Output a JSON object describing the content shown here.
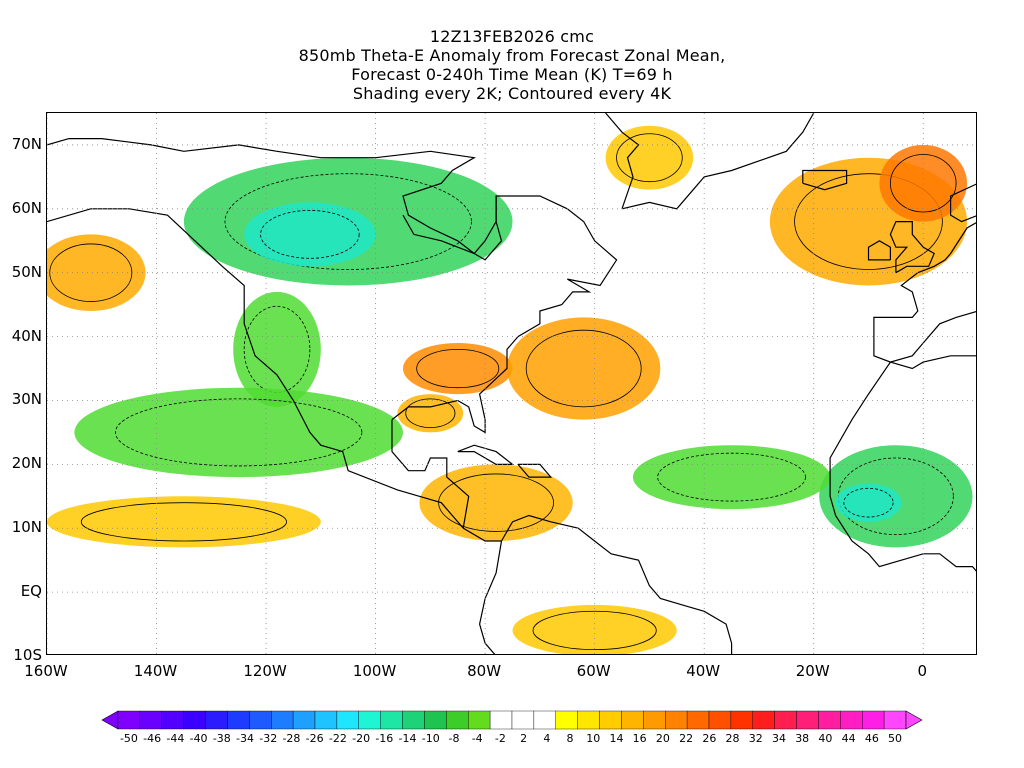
{
  "title_lines": [
    "12Z13FEB2026 cmc",
    "850mb Theta-E Anomaly from Forecast Zonal Mean,",
    "Forecast 0-240h Time Mean (K) T=69 h",
    "Shading every 2K; Contoured every 4K"
  ],
  "map": {
    "lon_range": [
      -160,
      10
    ],
    "lat_range": [
      -10,
      75
    ],
    "y_ticks": [
      {
        "lat": 70,
        "label": "70N"
      },
      {
        "lat": 60,
        "label": "60N"
      },
      {
        "lat": 50,
        "label": "50N"
      },
      {
        "lat": 40,
        "label": "40N"
      },
      {
        "lat": 30,
        "label": "30N"
      },
      {
        "lat": 20,
        "label": "20N"
      },
      {
        "lat": 10,
        "label": "10N"
      },
      {
        "lat": 0,
        "label": "EQ"
      },
      {
        "lat": -10,
        "label": "10S"
      }
    ],
    "x_ticks": [
      {
        "lon": -160,
        "label": "160W"
      },
      {
        "lon": -140,
        "label": "140W"
      },
      {
        "lon": -120,
        "label": "120W"
      },
      {
        "lon": -100,
        "label": "100W"
      },
      {
        "lon": -80,
        "label": "80W"
      },
      {
        "lon": -60,
        "label": "60W"
      },
      {
        "lon": -40,
        "label": "40W"
      },
      {
        "lon": -20,
        "label": "20W"
      },
      {
        "lon": 0,
        "label": "0"
      }
    ],
    "grid": "dotted"
  },
  "colorbar": {
    "colors": [
      "#7f00ff",
      "#6a00ff",
      "#5200ff",
      "#3c00ff",
      "#2a1cff",
      "#1e3cff",
      "#1e5aff",
      "#1e7cff",
      "#1ea0ff",
      "#1ec3ff",
      "#1ee6ff",
      "#1ef5d2",
      "#1ee6a5",
      "#1ed278",
      "#1ec350",
      "#3ccd28",
      "#64dc1e",
      "#ffffff",
      "#ffffff",
      "#ffffff",
      "#ffff00",
      "#ffe600",
      "#ffcd00",
      "#ffb400",
      "#ff9b00",
      "#ff8200",
      "#ff6900",
      "#ff5000",
      "#ff3200",
      "#ff1e1e",
      "#ff1e50",
      "#ff1e78",
      "#ff1ea0",
      "#ff1ec3",
      "#ff1ee6",
      "#ff46ff"
    ],
    "labels": [
      "-50",
      "-46",
      "-44",
      "-40",
      "-38",
      "-34",
      "-32",
      "-28",
      "-26",
      "-22",
      "-20",
      "-16",
      "-14",
      "-10",
      "-8",
      "-4",
      "-2",
      "2",
      "4",
      "8",
      "10",
      "14",
      "16",
      "20",
      "22",
      "26",
      "28",
      "32",
      "34",
      "38",
      "40",
      "44",
      "46",
      "50"
    ]
  },
  "anomaly_regions": [
    {
      "name": "canada-cold",
      "color": "#32d25a",
      "lon": -105,
      "lat": 58,
      "rx": 30,
      "ry": 10
    },
    {
      "name": "canada-core",
      "color": "#1ee6c8",
      "lon": -112,
      "lat": 56,
      "rx": 12,
      "ry": 5
    },
    {
      "name": "western-us",
      "color": "#50dc32",
      "lon": -118,
      "lat": 38,
      "rx": 8,
      "ry": 9
    },
    {
      "name": "east-pacific",
      "color": "#50dc32",
      "lon": -125,
      "lat": 25,
      "rx": 30,
      "ry": 7
    },
    {
      "name": "se-us-warm",
      "color": "#ff8c00",
      "lon": -85,
      "lat": 35,
      "rx": 10,
      "ry": 4
    },
    {
      "name": "gulf-warm",
      "color": "#ffb400",
      "lon": -90,
      "lat": 28,
      "rx": 6,
      "ry": 3
    },
    {
      "name": "atlantic-warm",
      "color": "#ffa000",
      "lon": -62,
      "lat": 35,
      "rx": 14,
      "ry": 8
    },
    {
      "name": "caribbean-warm",
      "color": "#ffb400",
      "lon": -78,
      "lat": 14,
      "rx": 14,
      "ry": 6
    },
    {
      "name": "tropical-pacific",
      "color": "#ffc800",
      "lon": -135,
      "lat": 11,
      "rx": 25,
      "ry": 4
    },
    {
      "name": "greenland-warm",
      "color": "#ffc800",
      "lon": -50,
      "lat": 68,
      "rx": 8,
      "ry": 5
    },
    {
      "name": "europe-warm",
      "color": "#ffaa00",
      "lon": -10,
      "lat": 58,
      "rx": 18,
      "ry": 10
    },
    {
      "name": "europe-core",
      "color": "#ff7800",
      "lon": 0,
      "lat": 64,
      "rx": 8,
      "ry": 6
    },
    {
      "name": "alaska-gulf-warm",
      "color": "#ffaa00",
      "lon": -152,
      "lat": 50,
      "rx": 10,
      "ry": 6
    },
    {
      "name": "west-africa-cold",
      "color": "#32d25a",
      "lon": -5,
      "lat": 15,
      "rx": 14,
      "ry": 8
    },
    {
      "name": "west-africa-core",
      "color": "#1ee6c8",
      "lon": -10,
      "lat": 14,
      "rx": 6,
      "ry": 3
    },
    {
      "name": "mid-atlantic-cold",
      "color": "#50dc32",
      "lon": -35,
      "lat": 18,
      "rx": 18,
      "ry": 5
    },
    {
      "name": "south-america-warm",
      "color": "#ffc800",
      "lon": -60,
      "lat": -6,
      "rx": 15,
      "ry": 4
    }
  ]
}
